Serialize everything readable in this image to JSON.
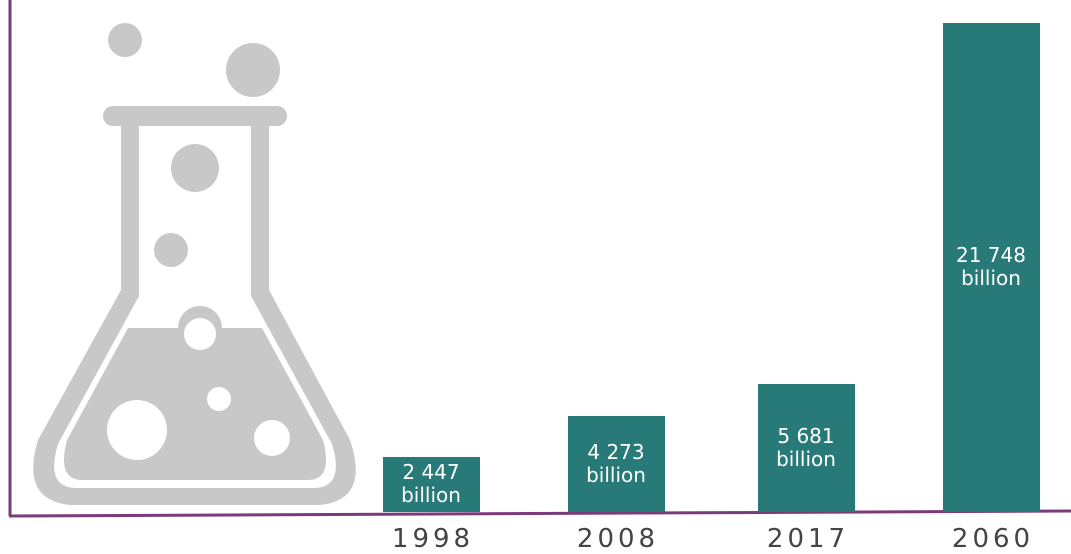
{
  "chart_data": {
    "type": "bar",
    "categories": [
      "1998",
      "2008",
      "2017",
      "2060"
    ],
    "values": [
      2447,
      4273,
      5681,
      21748
    ],
    "value_labels": [
      "2 447 billion",
      "4 273 billion",
      "5 681 billion",
      "21 748 billion"
    ],
    "color": "#277a78",
    "ylim": [
      0,
      22000
    ]
  }
}
